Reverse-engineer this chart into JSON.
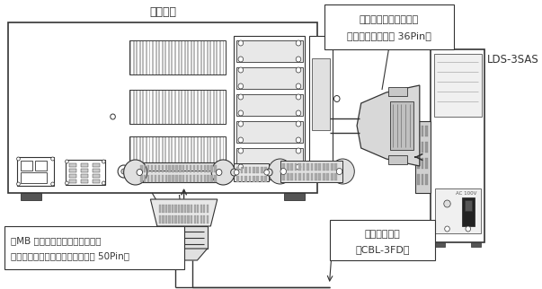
{
  "bg_color": "#ffffff",
  "line_color": "#333333",
  "labels": {
    "pasokon": "パソコン",
    "lds": "LDS-3SAS",
    "signal_cable": "信号ケーブルコネクタ",
    "signal_cable2": "（アンフェノール 36Pin）",
    "connection_cable": "接続ケーブル",
    "connection_cable2": "（CBL-3FD）",
    "floppy": "１MB 外付けフロッピーディスク",
    "floppy2": "インタフェース（アンフェノール 50Pin）"
  }
}
